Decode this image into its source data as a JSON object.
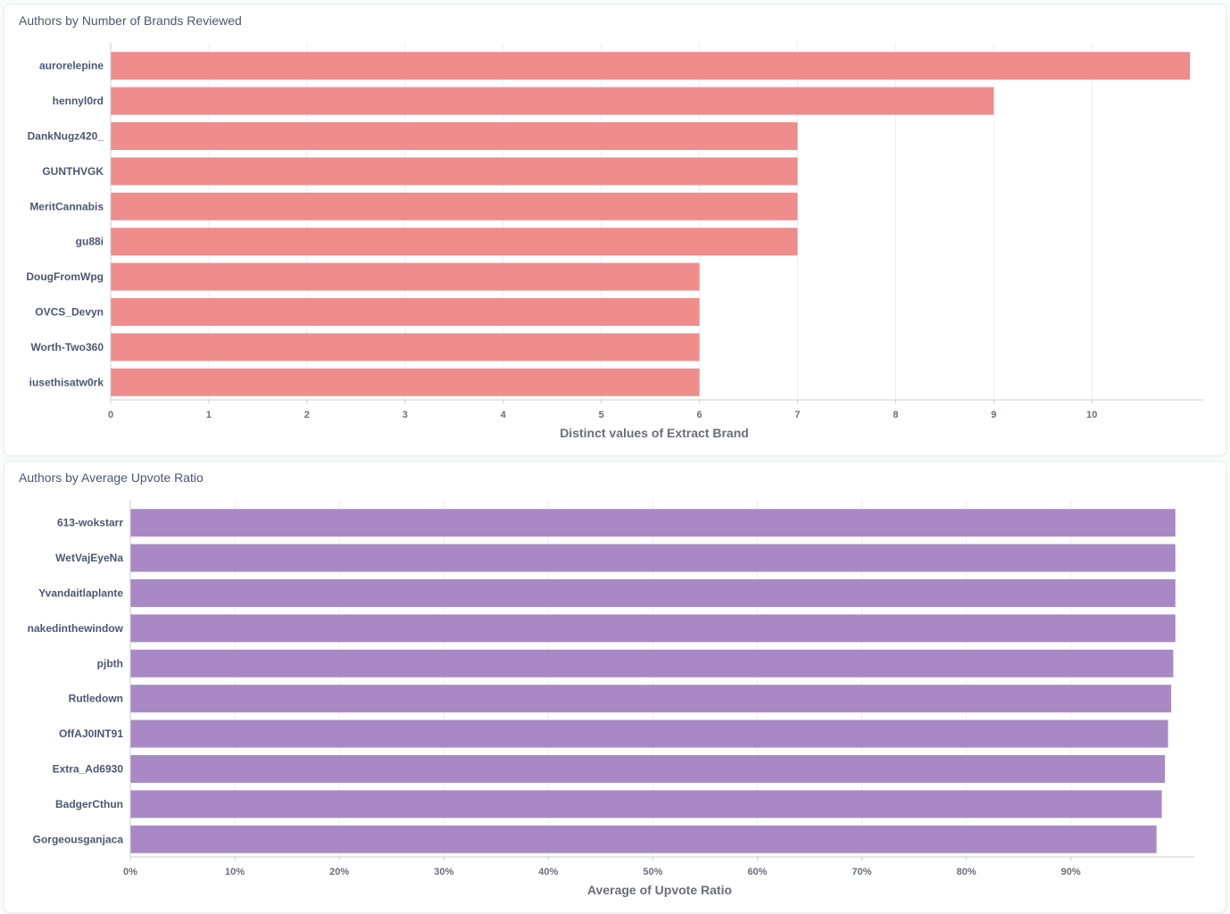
{
  "chart_data": [
    {
      "type": "bar",
      "orientation": "horizontal",
      "title": "Authors by Number of Brands Reviewed",
      "xlabel": "Distinct values of Extract Brand",
      "ylabel": "",
      "categories": [
        "aurorelepine",
        "hennyl0rd",
        "DankNugz420_",
        "GUNTHVGK",
        "MeritCannabis",
        "gu88i",
        "DougFromWpg",
        "OVCS_Devyn",
        "Worth-Two360",
        "iusethisatw0rk"
      ],
      "values": [
        11,
        9,
        7,
        7,
        7,
        7,
        6,
        6,
        6,
        6
      ],
      "xlim": [
        0,
        11.08
      ],
      "ticks": [
        "0",
        "1",
        "2",
        "3",
        "4",
        "5",
        "6",
        "7",
        "8",
        "9",
        "10"
      ],
      "tick_values": [
        0,
        1,
        2,
        3,
        4,
        5,
        6,
        7,
        8,
        9,
        10
      ],
      "color": "#ef8c8c",
      "grid": true
    },
    {
      "type": "bar",
      "orientation": "horizontal",
      "title": "Authors by Average Upvote Ratio",
      "xlabel": "Average of Upvote Ratio",
      "ylabel": "",
      "categories": [
        "613-wokstarr",
        "WetVajEyeNa",
        "Yvandaitlaplante",
        "nakedinthewindow",
        "pjbth",
        "Rutledown",
        "OffAJ0INT91",
        "Extra_Ad6930",
        "BadgerCthun",
        "Gorgeousganjaca"
      ],
      "values": [
        1.0,
        1.0,
        1.0,
        1.0,
        0.998,
        0.996,
        0.993,
        0.99,
        0.987,
        0.982
      ],
      "xlim": [
        0,
        1.013
      ],
      "ticks": [
        "0%",
        "10%",
        "20%",
        "30%",
        "40%",
        "50%",
        "60%",
        "70%",
        "80%",
        "90%"
      ],
      "tick_values": [
        0,
        0.1,
        0.2,
        0.3,
        0.4,
        0.5,
        0.6,
        0.7,
        0.8,
        0.9
      ],
      "color": "#a989c5",
      "grid": true
    }
  ]
}
